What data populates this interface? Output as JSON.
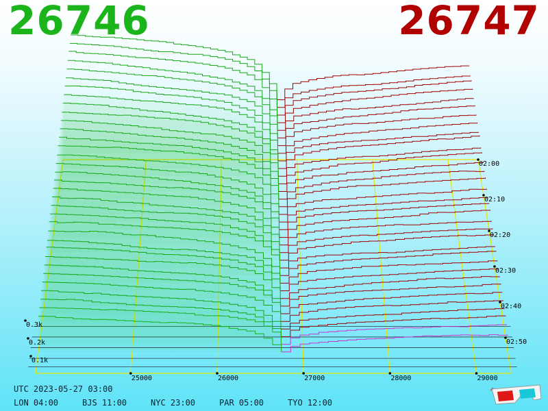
{
  "header": {
    "bid_price": "26746",
    "ask_price": "26747"
  },
  "footer": {
    "utc_line": "UTC 2023-05-27 03:00",
    "cities": [
      {
        "label": "LON 04:00"
      },
      {
        "label": "BJS 11:00"
      },
      {
        "label": "NYC 23:00"
      },
      {
        "label": "PAR 05:00"
      },
      {
        "label": "TYO 12:00"
      }
    ]
  },
  "colors": {
    "bid": "#1bb51b",
    "ask": "#b00000",
    "highlight": "#cc33cc",
    "grid": "#e6e600"
  },
  "icons": [
    "3d-glasses-icon"
  ],
  "chart_data": {
    "type": "area",
    "title": "",
    "x_ticks": [
      "25000",
      "26000",
      "27000",
      "28000",
      "29000"
    ],
    "x_range": [
      23900,
      29400
    ],
    "mid_price": 26746.5,
    "time_ticks": [
      "02:00",
      "02:10",
      "02:20",
      "02:30",
      "02:40",
      "02:50"
    ],
    "depth_ticks": [
      "0.3k",
      "0.2k",
      "0.1k"
    ],
    "depth_range": [
      0,
      0.3
    ],
    "time_range_minutes": [
      0,
      60
    ],
    "bid_depth_at_x": [
      [
        23900,
        0.28
      ],
      [
        24400,
        0.27
      ],
      [
        25000,
        0.25
      ],
      [
        25600,
        0.23
      ],
      [
        26000,
        0.21
      ],
      [
        26400,
        0.17
      ],
      [
        26600,
        0.1
      ],
      [
        26746,
        0.0
      ]
    ],
    "ask_depth_at_x": [
      [
        26747,
        0.0
      ],
      [
        26900,
        0.06
      ],
      [
        27200,
        0.08
      ],
      [
        27600,
        0.1
      ],
      [
        28000,
        0.11
      ],
      [
        28600,
        0.13
      ],
      [
        29000,
        0.14
      ],
      [
        29400,
        0.15
      ]
    ],
    "series_count": 34,
    "grid": true
  }
}
